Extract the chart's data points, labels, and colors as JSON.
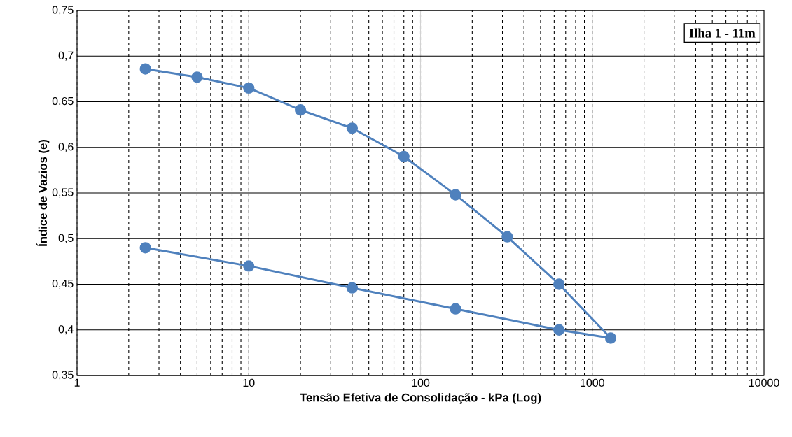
{
  "chart_data": {
    "type": "line",
    "xlabel": "Tensão Efetiva de Consolidação - kPa (Log)",
    "ylabel": "Índice de Vazios (e)",
    "annotations": [
      "Ilha 1 - 11m"
    ],
    "log": "x",
    "grid": true,
    "marker": "circle",
    "line_style": "solid",
    "xlim": [
      1,
      10000
    ],
    "xticks": [
      1,
      10,
      100,
      1000,
      10000
    ],
    "ylim": [
      0.35,
      0.75
    ],
    "yticks": [
      {
        "value": 0.35,
        "label": "0,35"
      },
      {
        "value": 0.4,
        "label": "0,4"
      },
      {
        "value": 0.45,
        "label": "0,45"
      },
      {
        "value": 0.5,
        "label": "0,5"
      },
      {
        "value": 0.55,
        "label": "0,55"
      },
      {
        "value": 0.6,
        "label": "0,6"
      },
      {
        "value": 0.65,
        "label": "0,65"
      },
      {
        "value": 0.7,
        "label": "0,7"
      },
      {
        "value": 0.75,
        "label": "0,75"
      }
    ],
    "series": [
      {
        "color": "#4f81bd",
        "x": [
          2.5,
          5,
          10,
          20,
          40,
          80,
          160,
          320,
          640,
          1280,
          640,
          160,
          40,
          10,
          2.5
        ],
        "values": [
          0.686,
          0.677,
          0.665,
          0.641,
          0.621,
          0.59,
          0.548,
          0.502,
          0.45,
          0.391,
          0.4,
          0.423,
          0.446,
          0.47,
          0.49
        ]
      }
    ]
  }
}
